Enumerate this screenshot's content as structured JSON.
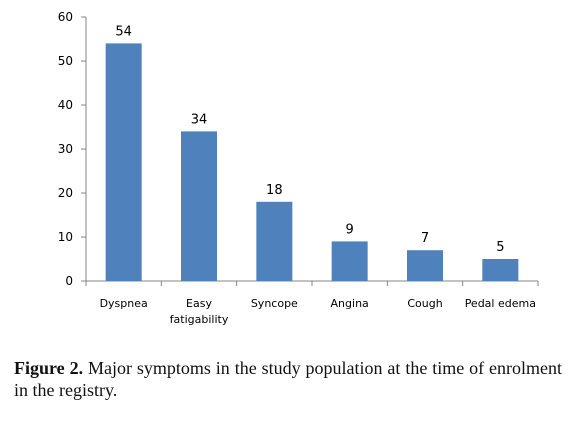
{
  "chart_data": {
    "type": "bar",
    "categories": [
      [
        "Dyspnea"
      ],
      [
        "Easy",
        "fatigability"
      ],
      [
        "Syncope"
      ],
      [
        "Angina"
      ],
      [
        "Cough"
      ],
      [
        "Pedal edema"
      ]
    ],
    "values": [
      54,
      34,
      18,
      9,
      7,
      5
    ],
    "ylim": [
      0,
      60
    ],
    "yticks": [
      0,
      10,
      20,
      30,
      40,
      50,
      60
    ],
    "grid": false,
    "legend": "none",
    "bar_color": "#4f81bd",
    "axis_color": "#868686"
  },
  "caption": {
    "label": "Figure 2.",
    "text": " Major symptoms in the study population at the time of enrolment in the registry."
  }
}
